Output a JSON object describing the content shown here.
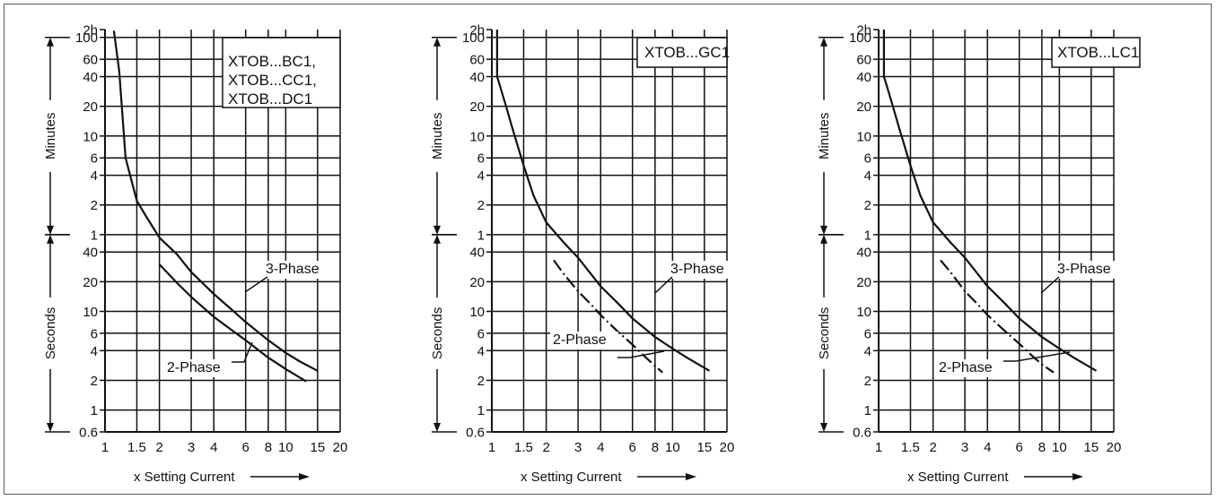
{
  "colors": {
    "grid": "#111111",
    "curve": "#111111",
    "background": "#ffffff",
    "frame": "#5a5a5a"
  },
  "axes": {
    "x_ticks": [
      "1",
      "1.5",
      "2",
      "3",
      "4",
      "6",
      "8",
      "10",
      "15",
      "20"
    ],
    "y_ticks": [
      "0.6",
      "1",
      "2",
      "4",
      "6",
      "10",
      "20",
      "40",
      "1",
      "2",
      "4",
      "6",
      "10",
      "20",
      "40",
      "60",
      "100",
      "2h"
    ],
    "y_band_lower": "Seconds",
    "y_band_upper": "Minutes",
    "xlabel": "x Setting Current"
  },
  "chart_data": [
    {
      "type": "line",
      "title": "XTOB...BC1, XTOB...CC1, XTOB...DC1",
      "title_lines": [
        "XTOB...BC1,",
        "XTOB...CC1,",
        "XTOB...DC1"
      ],
      "x_scale": "log",
      "y_scale": "log",
      "xlim": [
        1,
        20
      ],
      "ylim_seconds": [
        0.6,
        7200
      ],
      "grid": true,
      "series": [
        {
          "name": "3-Phase",
          "style": "solid",
          "x": [
            1.12,
            1.2,
            1.3,
            1.5,
            1.7,
            2.0,
            2.5,
            3.0,
            4.0,
            5.0,
            6.0,
            8.0,
            10.0,
            12.0,
            15.0
          ],
          "y_seconds": [
            7000,
            2700,
            360,
            132,
            90,
            56,
            38,
            25,
            15,
            10.5,
            7.8,
            5.1,
            3.8,
            3.1,
            2.5
          ]
        },
        {
          "name": "2-Phase",
          "style": "solid",
          "x": [
            2.0,
            2.5,
            3.0,
            4.0,
            5.0,
            6.0,
            8.0,
            10.0,
            13.0
          ],
          "y_seconds": [
            30,
            19.5,
            14,
            8.8,
            6.5,
            5.1,
            3.4,
            2.6,
            1.95
          ]
        }
      ]
    },
    {
      "type": "line",
      "title": "XTOB...GC1",
      "title_lines": [
        "XTOB...GC1"
      ],
      "x_scale": "log",
      "y_scale": "log",
      "xlim": [
        1,
        20
      ],
      "ylim_seconds": [
        0.6,
        7200
      ],
      "grid": true,
      "series": [
        {
          "name": "3-Phase",
          "style": "solid",
          "x": [
            1.07,
            1.07,
            1.1,
            1.2,
            1.3,
            1.5,
            1.7,
            2.0,
            2.5,
            3.0,
            4.0,
            5.0,
            6.0,
            8.0,
            10.0,
            12.0,
            16.0
          ],
          "y_seconds": [
            7200,
            2400,
            2040,
            1200,
            720,
            300,
            150,
            80,
            50,
            35,
            18,
            12,
            8.5,
            5.5,
            4.2,
            3.4,
            2.5
          ]
        },
        {
          "name": "2-Phase",
          "style": "dash-dot",
          "x": [
            2.2,
            2.5,
            3.0,
            3.5,
            4.0,
            5.0,
            6.0,
            7.0,
            8.0,
            8.8
          ],
          "y_seconds": [
            33,
            24,
            16,
            12,
            9.2,
            6.2,
            4.6,
            3.5,
            2.8,
            2.4
          ]
        }
      ]
    },
    {
      "type": "line",
      "title": "XTOB...LC1",
      "title_lines": [
        "XTOB...LC1"
      ],
      "x_scale": "log",
      "y_scale": "log",
      "xlim": [
        1,
        20
      ],
      "ylim_seconds": [
        0.6,
        7200
      ],
      "grid": true,
      "series": [
        {
          "name": "3-Phase",
          "style": "solid",
          "x": [
            1.07,
            1.07,
            1.1,
            1.2,
            1.3,
            1.5,
            1.7,
            2.0,
            2.5,
            3.0,
            4.0,
            5.0,
            6.0,
            8.0,
            10.0,
            12.0,
            16.0
          ],
          "y_seconds": [
            7200,
            2400,
            2040,
            1200,
            720,
            300,
            150,
            80,
            50,
            35,
            18,
            12,
            8.5,
            5.5,
            4.2,
            3.4,
            2.5
          ]
        },
        {
          "name": "2-Phase",
          "style": "dash-dot",
          "x": [
            2.2,
            2.5,
            3.0,
            3.5,
            4.0,
            5.0,
            6.0,
            7.0,
            8.0,
            9.3
          ],
          "y_seconds": [
            33,
            25,
            16,
            12,
            9.2,
            6.3,
            4.7,
            3.6,
            2.9,
            2.4
          ]
        }
      ]
    }
  ]
}
